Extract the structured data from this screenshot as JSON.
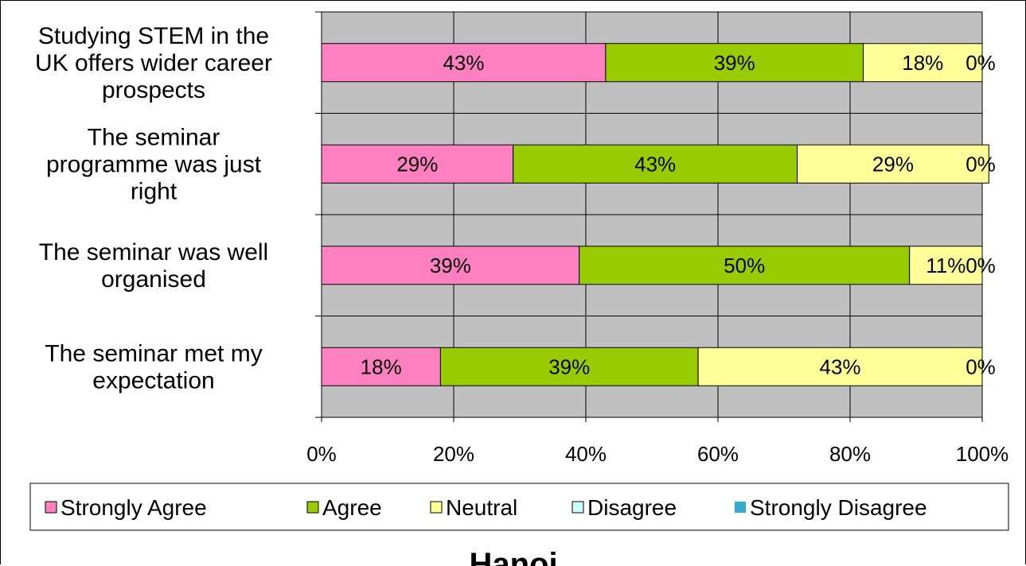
{
  "chart_data": {
    "type": "bar",
    "orientation": "horizontal",
    "stacked": "100%",
    "title": "Hanoi",
    "categories": [
      "Studying STEM in the UK offers wider career prospects",
      "The seminar programme was just right",
      "The seminar was well organised",
      "The seminar met my expectation"
    ],
    "series": [
      {
        "name": "Strongly Agree",
        "color": "#ff80c0",
        "values": [
          43,
          29,
          39,
          18
        ]
      },
      {
        "name": "Agree",
        "color": "#99cc00",
        "values": [
          39,
          43,
          50,
          39
        ]
      },
      {
        "name": "Neutral",
        "color": "#ffff99",
        "values": [
          18,
          29,
          11,
          43
        ]
      },
      {
        "name": "Disagree",
        "color": "#ccffff",
        "values": [
          0,
          0,
          0,
          0
        ]
      },
      {
        "name": "Strongly Disagree",
        "color": "#33aacc",
        "values": [
          0,
          0,
          0,
          0
        ]
      }
    ],
    "data_labels": [
      [
        "43%",
        "39%",
        "18%",
        "0%"
      ],
      [
        "29%",
        "43%",
        "29%",
        "0%"
      ],
      [
        "39%",
        "50%",
        "11%",
        "0%"
      ],
      [
        "18%",
        "39%",
        "43%",
        "0%"
      ]
    ],
    "xticks": [
      "0%",
      "20%",
      "40%",
      "60%",
      "80%",
      "100%"
    ],
    "xlim": [
      0,
      100
    ],
    "grid": true,
    "plot_background": "#c0c0c0",
    "legend_position": "bottom"
  }
}
